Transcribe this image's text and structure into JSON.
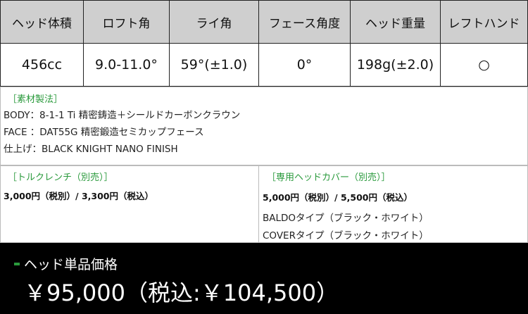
{
  "spec_table": {
    "headers": [
      "ヘッド体積",
      "ロフト角",
      "ライ角",
      "フェース角度",
      "ヘッド重量",
      "レフトハンド"
    ],
    "values": [
      "456cc",
      "9.0-11.0°",
      "59°(±1.0)",
      "0°",
      "198g(±2.0)",
      "○"
    ]
  },
  "materials": {
    "title": "［素材製法］",
    "lines": [
      "BODY：8-1-1 Ti 精密鋳造＋シールドカーボンクラウン",
      "FACE ：DAT55G 精密鍛造セミカップフェース",
      "仕上げ：BLACK KNIGHT NANO FINISH"
    ]
  },
  "torque_wrench": {
    "title": "［トルクレンチ（別売）］",
    "price": "3,000円（税別）/ 3,300円（税込）"
  },
  "head_cover": {
    "title": "［専用ヘッドカバー（別売）］",
    "price": "5,000円（税別）/ 5,500円（税込）",
    "types": [
      "BALDOタイプ（ブラック・ホワイト）",
      "COVERタイプ（ブラック・ホワイト）"
    ]
  },
  "price": {
    "label": "ヘッド単品価格",
    "value": "￥95,000（税込:￥104,500）"
  },
  "colors": {
    "accent_green": "#2a9a3c",
    "header_bg": "#cfcfcf",
    "footer_bg": "#000000"
  }
}
